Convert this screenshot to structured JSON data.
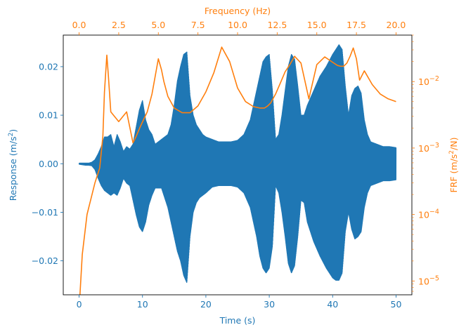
{
  "chart_data": {
    "type": "line",
    "title": "",
    "colors": {
      "response": "#1f77b4",
      "frf": "#ff7f0e",
      "axes": "#000000",
      "background": "#ffffff"
    },
    "bottom_axis": {
      "label": "Time (s)",
      "lim": [
        -2.5,
        52.5
      ],
      "ticks": [
        0,
        10,
        20,
        30,
        40,
        50
      ],
      "tick_labels": [
        "0",
        "10",
        "20",
        "30",
        "40",
        "50"
      ]
    },
    "left_axis": {
      "label_prefix": "Response (m/s",
      "label_sup": "2",
      "label_suffix": ")",
      "lim": [
        -0.027,
        0.0265
      ],
      "ticks": [
        -0.02,
        -0.01,
        0.0,
        0.01,
        0.02
      ],
      "tick_labels": [
        "−0.02",
        "−0.01",
        "0.00",
        "0.01",
        "0.02"
      ]
    },
    "top_axis": {
      "label": "Frequency (Hz)",
      "lim": [
        -1.0,
        21.0
      ],
      "ticks": [
        0,
        2.5,
        5,
        7.5,
        10,
        12.5,
        15,
        17.5,
        20
      ],
      "tick_labels": [
        "0.0",
        "2.5",
        "5.0",
        "7.5",
        "10.0",
        "12.5",
        "15.0",
        "17.5",
        "20.0"
      ]
    },
    "right_axis": {
      "label_prefix": "FRF (m/s",
      "label_sup": "2",
      "label_suffix": "/N)",
      "scale": "log",
      "lim": [
        6.2e-06,
        0.05
      ],
      "ticks": [
        1e-05,
        0.0001,
        0.001,
        0.01
      ],
      "tick_base": "10",
      "tick_exponents": [
        "−5",
        "−4",
        "−3",
        "−2"
      ]
    },
    "series": [
      {
        "name": "Response",
        "axis": "left-bottom",
        "render": "dense-oscillation envelope",
        "t": [
          0,
          0.5,
          1.0,
          1.5,
          2.0,
          2.5,
          3.0,
          3.5,
          4.0,
          4.5,
          5.0,
          5.5,
          6.0,
          6.5,
          7.0,
          7.5,
          8.0,
          8.5,
          9.0,
          9.5,
          10.0,
          10.5,
          11.0,
          11.5,
          12.0,
          12.5,
          13.0,
          13.5,
          14.0,
          14.5,
          15.0,
          15.5,
          16.0,
          16.5,
          17.0,
          17.5,
          18.0,
          18.5,
          19.0,
          19.5,
          20.0,
          21.0,
          22.0,
          23.0,
          24.0,
          25.0,
          26.0,
          27.0,
          28.0,
          28.5,
          29.0,
          29.5,
          30.0,
          30.5,
          31.0,
          31.5,
          32.0,
          32.5,
          33.0,
          33.5,
          34.0,
          34.5,
          35.0,
          35.5,
          36.0,
          37.0,
          38.0,
          39.0,
          40.0,
          40.5,
          41.0,
          41.5,
          42.0,
          42.5,
          43.0,
          43.5,
          44.0,
          44.5,
          45.0,
          45.5,
          46.0,
          47.0,
          48.0,
          49.0,
          50.0
        ],
        "upper": [
          0.0001,
          0.0001,
          0.0001,
          0.0001,
          0.0003,
          0.0008,
          0.002,
          0.0035,
          0.0055,
          0.0055,
          0.006,
          0.0035,
          0.006,
          0.0045,
          0.0025,
          0.0035,
          0.003,
          0.004,
          0.0075,
          0.011,
          0.013,
          0.009,
          0.007,
          0.006,
          0.004,
          0.0045,
          0.005,
          0.0055,
          0.006,
          0.008,
          0.012,
          0.017,
          0.02,
          0.0225,
          0.023,
          0.014,
          0.01,
          0.008,
          0.007,
          0.006,
          0.0055,
          0.005,
          0.0045,
          0.0045,
          0.0045,
          0.0048,
          0.006,
          0.009,
          0.015,
          0.018,
          0.021,
          0.022,
          0.0225,
          0.015,
          0.005,
          0.006,
          0.01,
          0.015,
          0.02,
          0.0225,
          0.0215,
          0.016,
          0.01,
          0.01,
          0.012,
          0.015,
          0.018,
          0.02,
          0.0225,
          0.0235,
          0.0245,
          0.0235,
          0.016,
          0.01,
          0.014,
          0.0155,
          0.016,
          0.0145,
          0.009,
          0.006,
          0.0045,
          0.004,
          0.0035,
          0.0035,
          0.0033
        ],
        "lower": [
          -0.0001,
          -0.0002,
          -0.0003,
          -0.0003,
          -0.0004,
          -0.0012,
          -0.003,
          -0.0045,
          -0.0055,
          -0.006,
          -0.0065,
          -0.006,
          -0.0065,
          -0.005,
          -0.003,
          -0.004,
          -0.0045,
          -0.0075,
          -0.0105,
          -0.013,
          -0.014,
          -0.012,
          -0.0085,
          -0.0065,
          -0.005,
          -0.005,
          -0.005,
          -0.007,
          -0.009,
          -0.012,
          -0.015,
          -0.018,
          -0.02,
          -0.023,
          -0.0245,
          -0.015,
          -0.01,
          -0.008,
          -0.007,
          -0.0065,
          -0.006,
          -0.0048,
          -0.0045,
          -0.0045,
          -0.0045,
          -0.0048,
          -0.006,
          -0.009,
          -0.015,
          -0.019,
          -0.0215,
          -0.0225,
          -0.0215,
          -0.017,
          -0.0045,
          -0.006,
          -0.01,
          -0.015,
          -0.0205,
          -0.0225,
          -0.021,
          -0.015,
          -0.0075,
          -0.008,
          -0.012,
          -0.016,
          -0.019,
          -0.0215,
          -0.0235,
          -0.024,
          -0.024,
          -0.0225,
          -0.014,
          -0.01,
          -0.0135,
          -0.0155,
          -0.015,
          -0.014,
          -0.009,
          -0.006,
          -0.0045,
          -0.004,
          -0.0035,
          -0.0035,
          -0.0033
        ]
      },
      {
        "name": "FRF",
        "axis": "right-top",
        "x": [
          0.05,
          0.2,
          0.5,
          1.0,
          1.3,
          1.5,
          1.6,
          1.75,
          1.85,
          2.0,
          2.5,
          3.0,
          3.4,
          3.6,
          3.9,
          4.3,
          4.6,
          5.0,
          5.2,
          5.35,
          5.6,
          6.0,
          6.5,
          7.0,
          7.5,
          8.0,
          8.5,
          9.0,
          9.5,
          10.0,
          10.5,
          11.0,
          11.4,
          11.7,
          11.9,
          12.1,
          12.4,
          12.7,
          13.0,
          13.3,
          13.6,
          14.0,
          14.5,
          15.0,
          15.5,
          16.0,
          16.3,
          16.5,
          16.7,
          16.9,
          17.1,
          17.3,
          17.5,
          17.7,
          18.0,
          18.5,
          19.0,
          19.5,
          20.0
        ],
        "y": [
          6e-06,
          2.5e-05,
          0.0001,
          0.0003,
          0.0005,
          0.0015,
          0.007,
          0.025,
          0.012,
          0.0035,
          0.0025,
          0.0035,
          0.0012,
          0.0015,
          0.0022,
          0.0035,
          0.0065,
          0.022,
          0.015,
          0.01,
          0.006,
          0.004,
          0.0034,
          0.0034,
          0.0043,
          0.007,
          0.0135,
          0.033,
          0.02,
          0.008,
          0.005,
          0.0042,
          0.004,
          0.004,
          0.0043,
          0.0048,
          0.0065,
          0.0095,
          0.014,
          0.018,
          0.024,
          0.019,
          0.0055,
          0.018,
          0.0235,
          0.0195,
          0.0175,
          0.017,
          0.017,
          0.019,
          0.024,
          0.032,
          0.022,
          0.0105,
          0.0145,
          0.009,
          0.0065,
          0.0055,
          0.005
        ]
      }
    ]
  }
}
